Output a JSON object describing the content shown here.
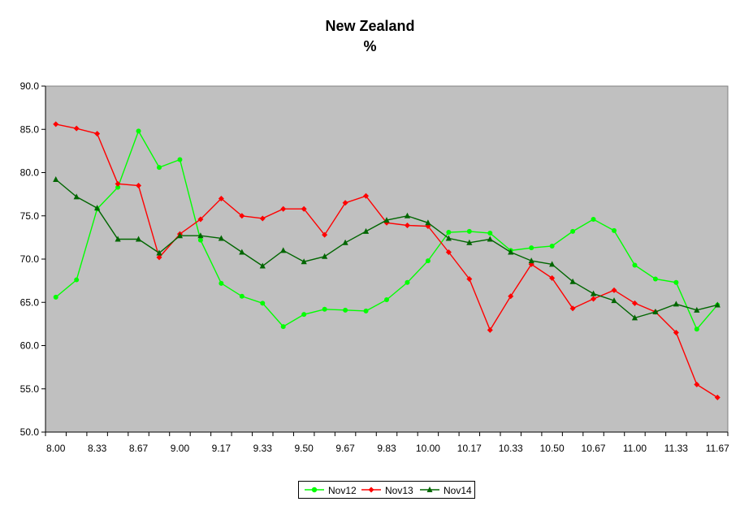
{
  "chart_data": {
    "type": "line",
    "title": "New Zealand",
    "subtitle": "%",
    "xlabel": "",
    "ylabel": "",
    "ylim": [
      50,
      90
    ],
    "yticks": [
      "50.0",
      "55.0",
      "60.0",
      "65.0",
      "70.0",
      "75.0",
      "80.0",
      "85.0",
      "90.0"
    ],
    "xticks": [
      "8.00",
      "8.33",
      "8.67",
      "9.00",
      "9.17",
      "9.33",
      "9.50",
      "9.67",
      "9.83",
      "10.00",
      "10.17",
      "10.33",
      "10.50",
      "10.67",
      "11.00",
      "11.33",
      "11.67"
    ],
    "grid": false,
    "legend": "bottom",
    "plot_background": "#c0c0c0",
    "series": [
      {
        "name": "Nov12",
        "color": "#00ff00",
        "marker": "circle",
        "values": [
          65.6,
          67.6,
          75.8,
          78.3,
          84.8,
          80.6,
          81.5,
          72.2,
          67.2,
          65.7,
          64.9,
          62.2,
          63.6,
          64.2,
          64.1,
          64.0,
          65.3,
          67.3,
          69.8,
          73.1,
          73.2,
          73.0,
          71.0,
          71.3,
          71.5,
          73.2,
          74.6,
          73.3,
          69.3,
          67.7,
          67.3,
          61.9,
          64.7
        ]
      },
      {
        "name": "Nov13",
        "color": "#ff0000",
        "marker": "diamond",
        "values": [
          85.6,
          85.1,
          84.5,
          78.7,
          78.5,
          70.2,
          72.9,
          74.6,
          77.0,
          75.0,
          74.7,
          75.8,
          75.8,
          72.8,
          76.5,
          77.3,
          74.2,
          73.9,
          73.8,
          70.8,
          67.7,
          61.8,
          65.7,
          69.4,
          67.8,
          64.3,
          65.4,
          66.4,
          64.9,
          63.9,
          61.5,
          55.5,
          54.0
        ]
      },
      {
        "name": "Nov14",
        "color": "#006600",
        "marker": "triangle",
        "values": [
          79.2,
          77.2,
          75.9,
          72.3,
          72.3,
          70.7,
          72.7,
          72.7,
          72.4,
          70.8,
          69.2,
          71.0,
          69.7,
          70.3,
          71.9,
          73.2,
          74.5,
          75.0,
          74.2,
          72.4,
          71.9,
          72.3,
          70.8,
          69.8,
          69.4,
          67.4,
          66.0,
          65.2,
          63.2,
          63.9,
          64.8,
          64.1,
          64.7
        ]
      }
    ]
  }
}
